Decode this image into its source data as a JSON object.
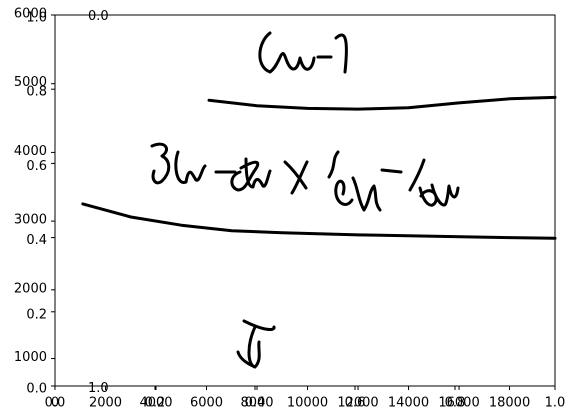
{
  "chart_data": {
    "type": "line",
    "description_free": true,
    "title": "",
    "xlabel": "",
    "ylabel": "",
    "axes": [
      {
        "id": "normalized",
        "xlim": [
          0.0,
          1.0
        ],
        "ylim": [
          0.0,
          1.0
        ],
        "xticks": [
          "0.0",
          "0.2",
          "0.4",
          "0.6",
          "0.8",
          "1.0"
        ],
        "yticks": [
          "0.0",
          "0.2",
          "0.4",
          "0.6",
          "0.8",
          "1.0"
        ]
      },
      {
        "id": "pixel",
        "xlim": [
          0,
          19800
        ],
        "ylim": [
          600,
          6000
        ],
        "xticks": [
          "0",
          "2000",
          "4000",
          "6000",
          "8000",
          "10000",
          "12000",
          "14000",
          "16000",
          "18000"
        ],
        "yticks": [
          "1000",
          "2000",
          "3000",
          "4000",
          "5000",
          "6000"
        ]
      }
    ],
    "overlapping_labels": {
      "top_left_value": "0.0",
      "bottom_left_value": "1.0"
    },
    "series": [
      {
        "values": [
          [
            6100,
            4760
          ],
          [
            8000,
            4680
          ],
          [
            10000,
            4640
          ],
          [
            12000,
            4630
          ],
          [
            14000,
            4650
          ],
          [
            16000,
            4720
          ],
          [
            18000,
            4780
          ],
          [
            19800,
            4800
          ]
        ]
      },
      {
        "values": [
          [
            1100,
            3250
          ],
          [
            3000,
            3060
          ],
          [
            5000,
            2940
          ],
          [
            7000,
            2860
          ],
          [
            9000,
            2830
          ],
          [
            12000,
            2800
          ],
          [
            15000,
            2780
          ],
          [
            18000,
            2760
          ],
          [
            19800,
            2750
          ]
        ]
      }
    ]
  }
}
